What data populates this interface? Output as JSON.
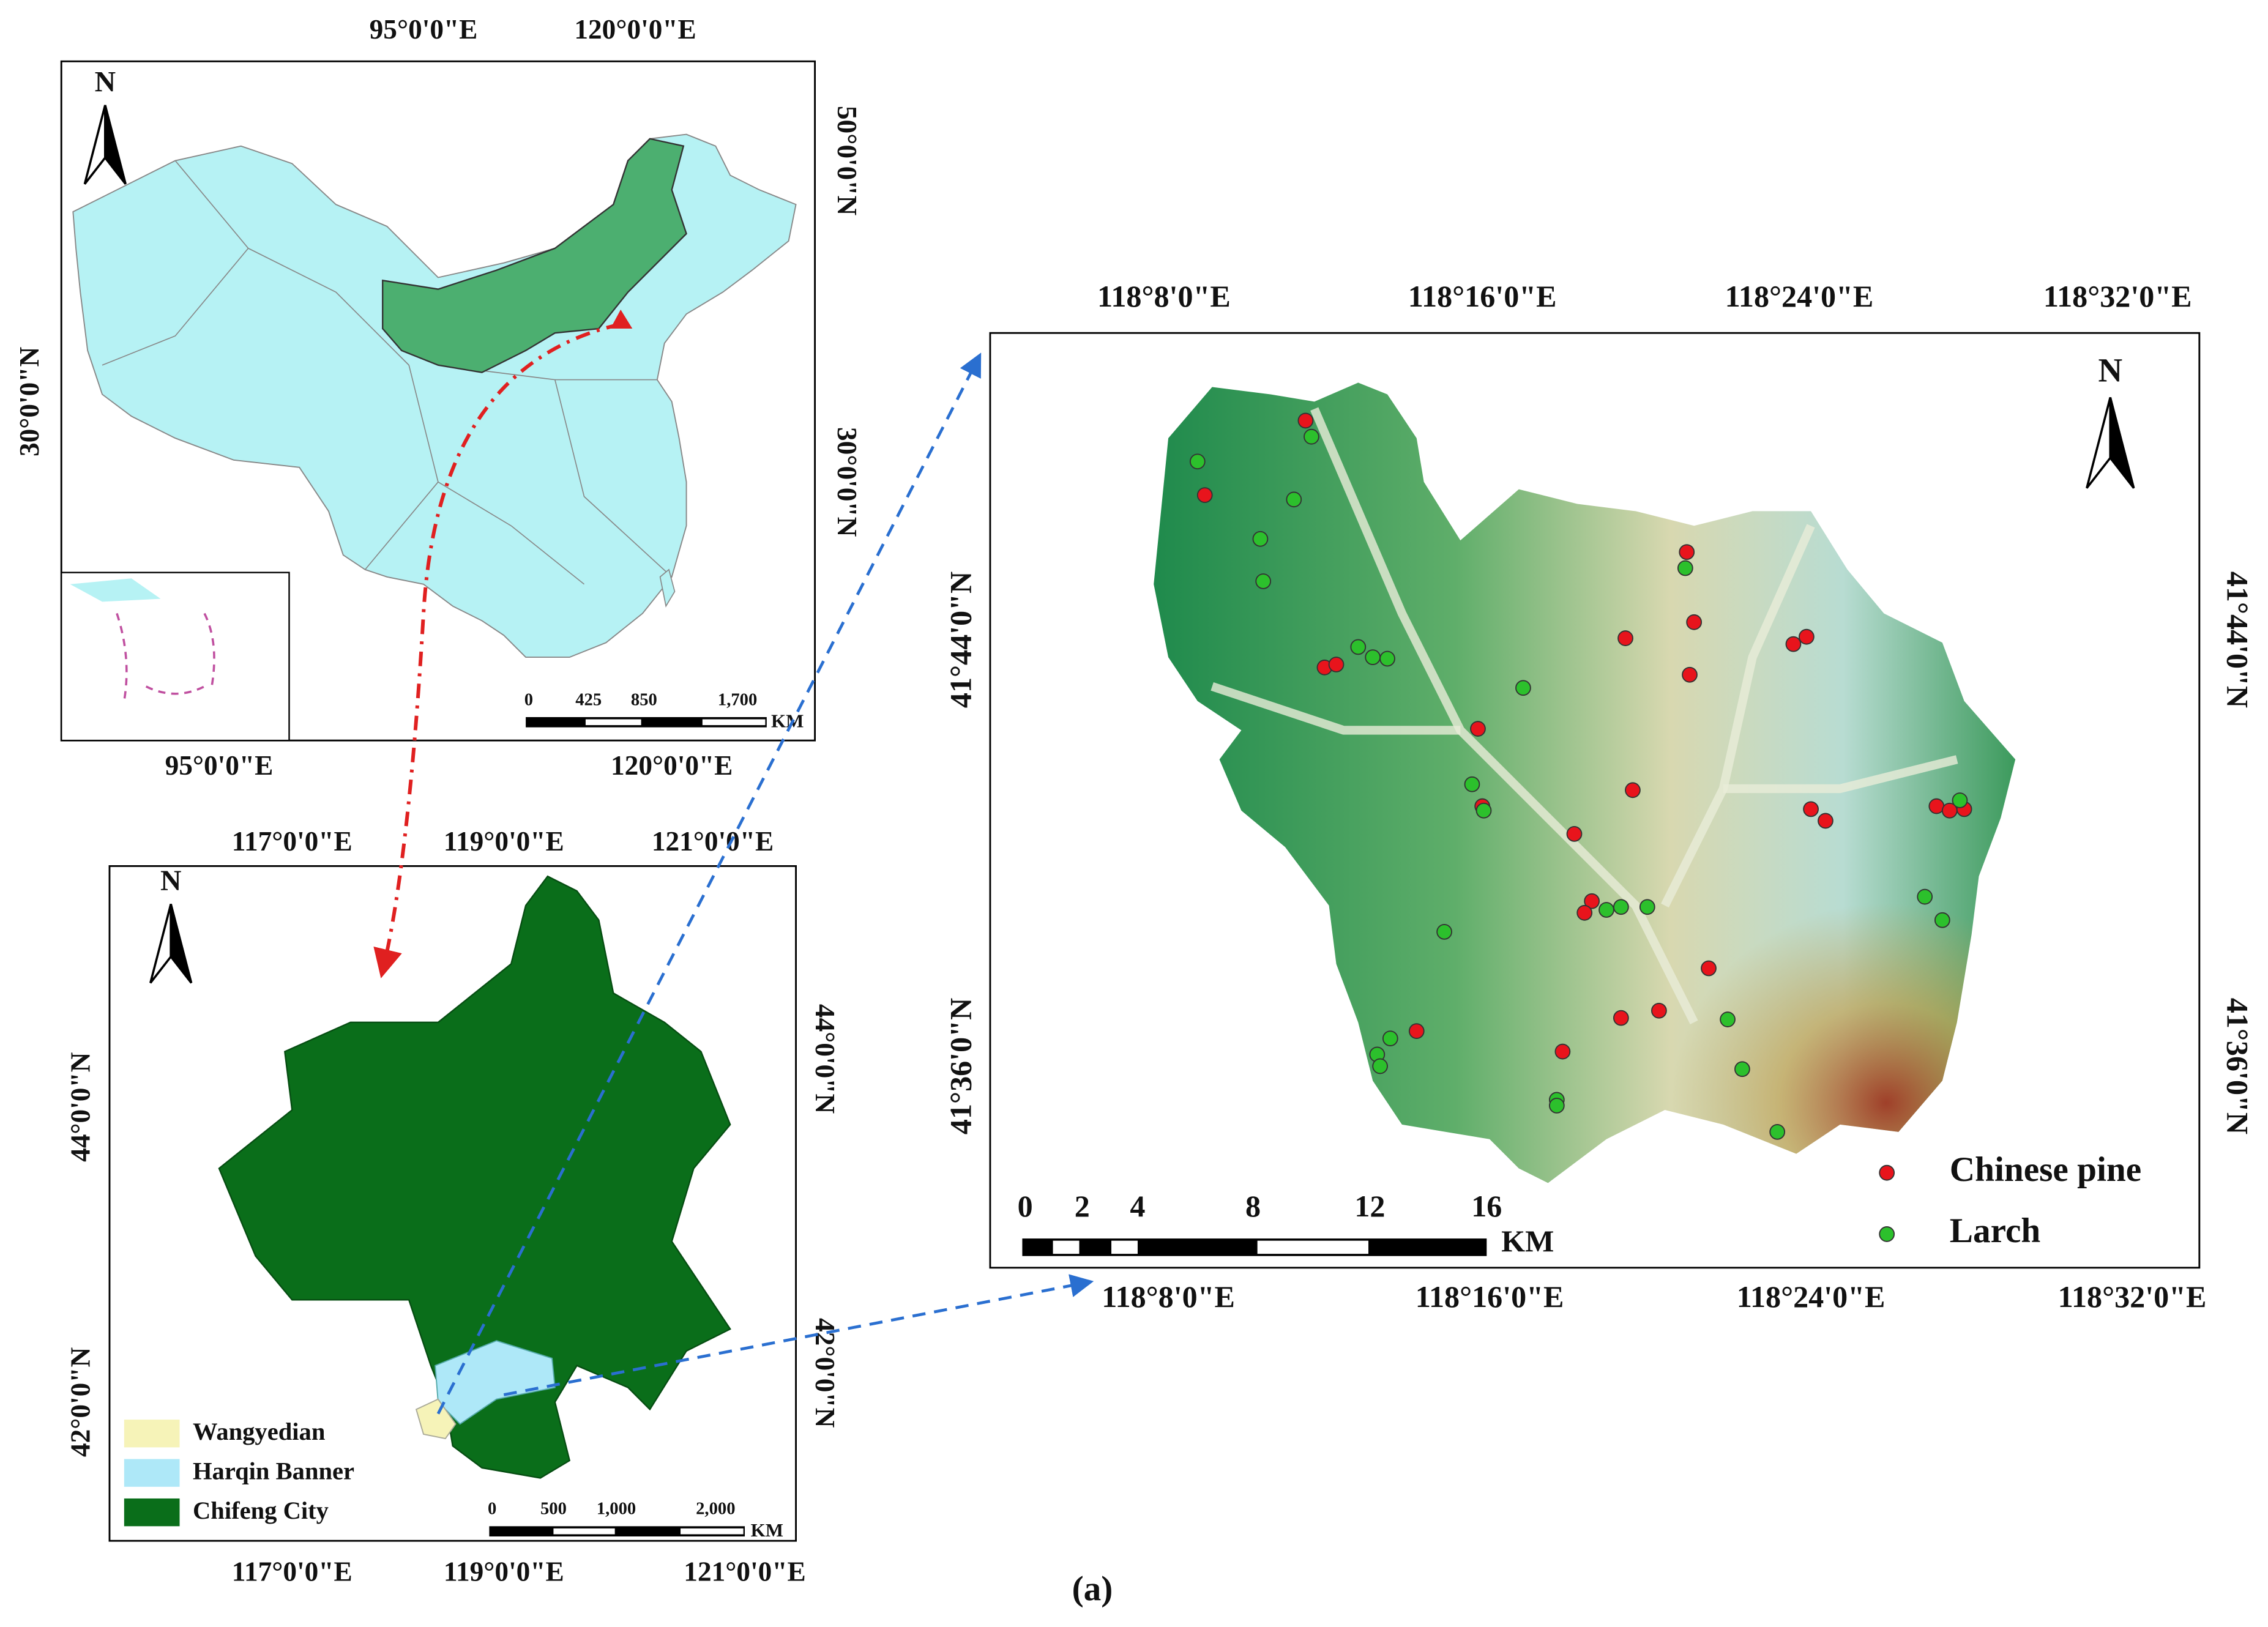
{
  "china_map": {
    "north": "N",
    "top_ticks": [
      "95°0'0\"E",
      "120°0'0\"E"
    ],
    "bottom_ticks": [
      "95°0'0\"E",
      "120°0'0\"E"
    ],
    "left_ticks": [
      "30°0'0\"N"
    ],
    "right_ticks": [
      "50°0'0\"N",
      "30°0'0\"N"
    ],
    "scale_labels": [
      "0",
      "425",
      "850",
      "1,700"
    ],
    "scale_unit": "KM"
  },
  "chifeng_map": {
    "north": "N",
    "top_ticks": [
      "117°0'0\"E",
      "119°0'0\"E",
      "121°0'0\"E"
    ],
    "bottom_ticks": [
      "117°0'0\"E",
      "119°0'0\"E",
      "121°0'0\"E"
    ],
    "left_ticks": [
      "44°0'0\"N",
      "42°0'0\"N"
    ],
    "right_ticks": [
      "44°0'0\"N",
      "42°0'0\"N"
    ],
    "legend": [
      "Wangyedian",
      "Harqin Banner",
      "Chifeng City"
    ],
    "scale_labels": [
      "0",
      "500",
      "1,000",
      "2,000"
    ],
    "scale_unit": "KM"
  },
  "study_area": {
    "north": "N",
    "top_ticks": [
      "118°8'0\"E",
      "118°16'0\"E",
      "118°24'0\"E",
      "118°32'0\"E"
    ],
    "bottom_ticks": [
      "118°8'0\"E",
      "118°16'0\"E",
      "118°24'0\"E",
      "118°32'0\"E"
    ],
    "left_ticks": [
      "41°44'0\"N",
      "41°36'0\"N"
    ],
    "right_ticks": [
      "41°44'0\"N",
      "41°36'0\"N"
    ],
    "legend": [
      "Chinese pine",
      "Larch"
    ],
    "scale_labels": [
      "0",
      "2",
      "4",
      "8",
      "12",
      "16"
    ],
    "scale_unit": "KM"
  },
  "caption": "(a)"
}
